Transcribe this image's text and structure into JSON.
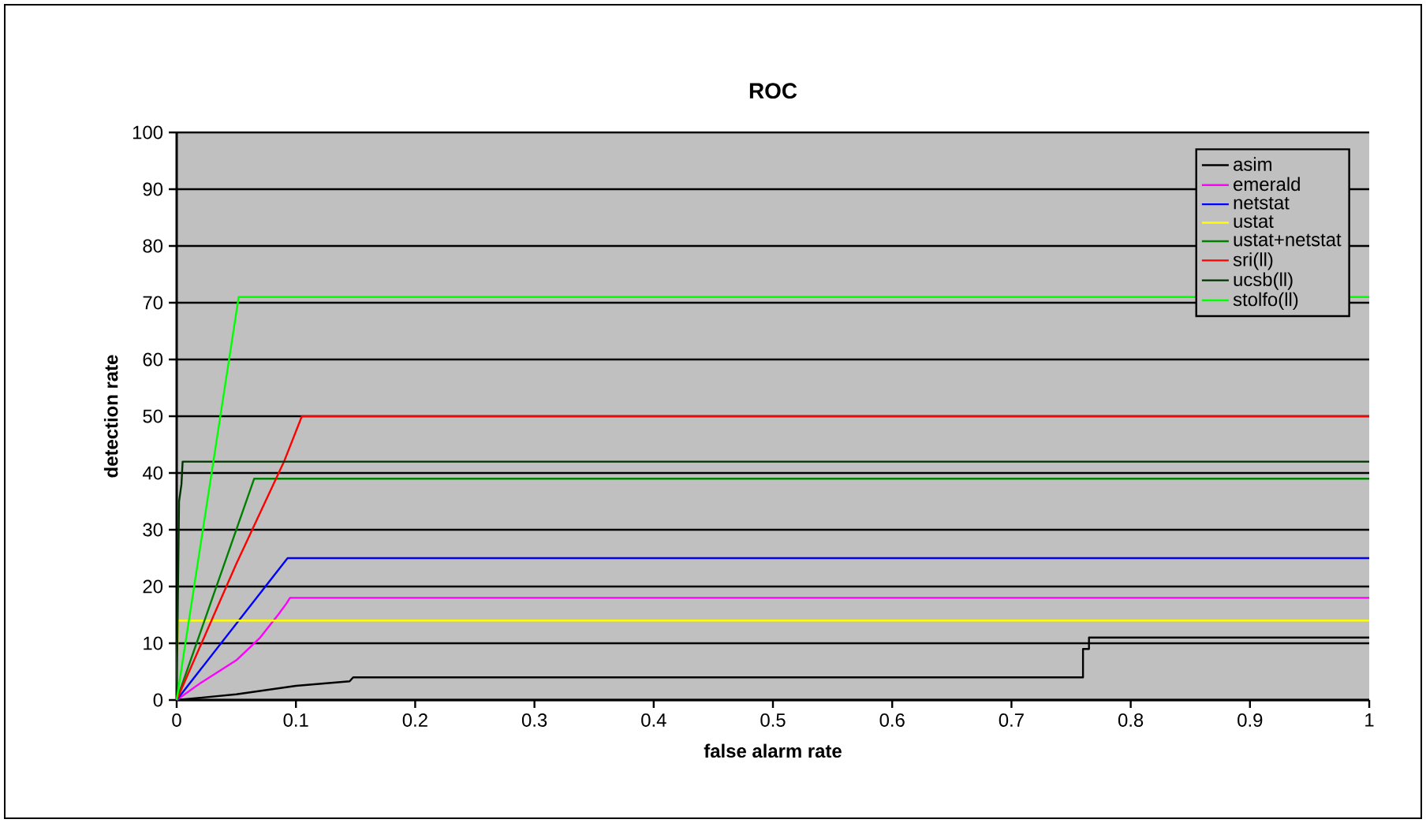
{
  "chart_data": {
    "type": "line",
    "title": "ROC",
    "xlabel": "false alarm rate",
    "ylabel": "detection rate",
    "xlim": [
      0,
      1
    ],
    "ylim": [
      0,
      100
    ],
    "xticks": [
      0,
      0.1,
      0.2,
      0.3,
      0.4,
      0.5,
      0.6,
      0.7,
      0.8,
      0.9,
      1
    ],
    "yticks": [
      0,
      10,
      20,
      30,
      40,
      50,
      60,
      70,
      80,
      90,
      100
    ],
    "grid": "y",
    "legend": "top right",
    "marker": "none",
    "line_style": "solid",
    "series": [
      {
        "name": "asim",
        "color": "#000000",
        "x": [
          0,
          0.05,
          0.1,
          0.145,
          0.148,
          0.76,
          0.76,
          0.765,
          0.765,
          1
        ],
        "values": [
          0,
          1,
          2.5,
          3.3,
          4,
          4,
          9,
          9,
          11,
          11
        ]
      },
      {
        "name": "emerald",
        "color": "#ff00ff",
        "x": [
          0,
          0.02,
          0.05,
          0.07,
          0.085,
          0.092,
          0.095,
          1
        ],
        "values": [
          0,
          3,
          7,
          11,
          15,
          17,
          18,
          18
        ]
      },
      {
        "name": "netstat",
        "color": "#0000ff",
        "x": [
          0,
          0.093,
          1
        ],
        "values": [
          0,
          25,
          25
        ]
      },
      {
        "name": "ustat",
        "color": "#ffff00",
        "x": [
          0,
          0.001,
          1
        ],
        "values": [
          0,
          14,
          14
        ]
      },
      {
        "name": "ustat+netstat",
        "color": "#008000",
        "x": [
          0,
          0.065,
          1
        ],
        "values": [
          0,
          39,
          39
        ]
      },
      {
        "name": "sri(ll)",
        "color": "#ff0000",
        "x": [
          0,
          0.05,
          0.09,
          0.105,
          1
        ],
        "values": [
          0,
          24,
          42,
          50,
          50
        ]
      },
      {
        "name": "ucsb(ll)",
        "color": "#003300",
        "x": [
          0,
          0.002,
          0.004,
          0.005,
          0.008,
          1
        ],
        "values": [
          0,
          35,
          38,
          42,
          42,
          42
        ]
      },
      {
        "name": "stolfo(ll)",
        "color": "#00ff00",
        "x": [
          0,
          0.052,
          1
        ],
        "values": [
          0,
          71,
          71
        ]
      }
    ]
  }
}
